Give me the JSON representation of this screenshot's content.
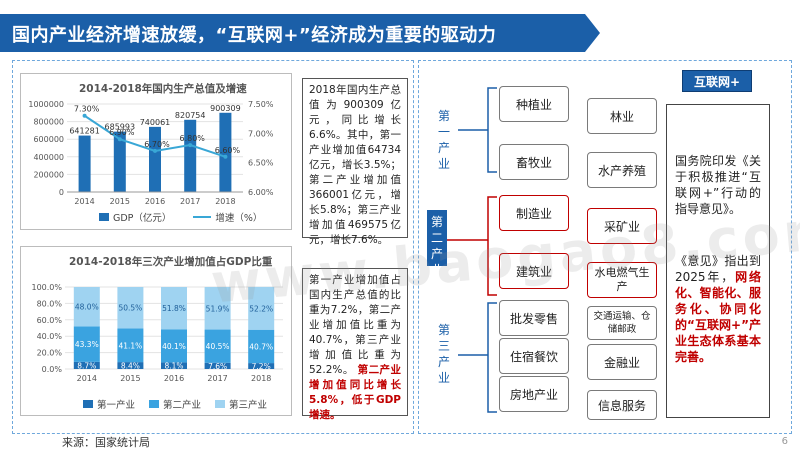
{
  "title": "国内产业经济增速放缓，“互联网+”经济成为重要的驱动力",
  "colors": {
    "brand_blue": "#1b5fa8",
    "accent_red": "#c00000",
    "bar_dark": "#1f6fb5",
    "bar_mid": "#3aa3e0",
    "bar_light": "#9fd3f1"
  },
  "chart1": {
    "title": "2014-2018年国内生产总值及增速",
    "legend_gdp": "GDP（亿元）",
    "legend_growth": "增速（%）",
    "categories": [
      "2014",
      "2015",
      "2016",
      "2017",
      "2018"
    ],
    "gdp_labels": [
      "641281",
      "685993",
      "740061",
      "820754",
      "900309"
    ],
    "growth_labels": [
      "7.30%",
      "6.90%",
      "6.70%",
      "6.80%",
      "6.60%"
    ],
    "y_left_ticks": [
      "1000000",
      "800000",
      "600000",
      "400000",
      "200000",
      "0"
    ],
    "y_right_ticks": [
      "7.50%",
      "7.00%",
      "6.50%",
      "6.00%"
    ]
  },
  "chart2": {
    "title": "2014-2018年三次产业增加值占GDP比重",
    "categories": [
      "2014",
      "2015",
      "2016",
      "2017",
      "2018"
    ],
    "y_ticks": [
      "100.0%",
      "80.0%",
      "60.0%",
      "40.0%",
      "20.0%",
      "0.0%"
    ],
    "legend": [
      "第一产业",
      "第二产业",
      "第三产业"
    ],
    "tertiary_labels": [
      "48.0%",
      "50.5%",
      "51.8%",
      "51.9%",
      "52.2%"
    ],
    "secondary_labels": [
      "43.3%",
      "41.1%",
      "40.1%",
      "40.5%",
      "40.7%"
    ],
    "primary_labels": [
      "8.7%",
      "8.4%",
      "8.1%",
      "7.6%",
      "7.2%"
    ]
  },
  "chart_data": [
    {
      "type": "bar",
      "title": "2014-2018年国内生产总值及增速",
      "categories": [
        "2014",
        "2015",
        "2016",
        "2017",
        "2018"
      ],
      "series": [
        {
          "name": "GDP（亿元）",
          "values": [
            641281,
            685993,
            740061,
            820754,
            900309
          ],
          "axis": "left"
        },
        {
          "name": "增速（%）",
          "values": [
            7.3,
            6.9,
            6.7,
            6.8,
            6.6
          ],
          "axis": "right",
          "render": "line"
        }
      ],
      "ylim": [
        0,
        1000000
      ],
      "y2lim": [
        6.0,
        7.5
      ],
      "legend_position": "bottom"
    },
    {
      "type": "bar",
      "stacked": true,
      "title": "2014-2018年三次产业增加值占GDP比重",
      "categories": [
        "2014",
        "2015",
        "2016",
        "2017",
        "2018"
      ],
      "series": [
        {
          "name": "第一产业",
          "values": [
            8.7,
            8.4,
            8.1,
            7.6,
            7.2
          ]
        },
        {
          "name": "第二产业",
          "values": [
            43.3,
            41.1,
            40.1,
            40.5,
            40.7
          ]
        },
        {
          "name": "第三产业",
          "values": [
            48.0,
            50.5,
            51.8,
            51.9,
            52.2
          ]
        }
      ],
      "ylim": [
        0,
        100
      ],
      "legend_position": "bottom"
    }
  ],
  "text_gdp": "2018年国内生产总值为900309亿元，同比增长6.6%。其中，第一产业增加值64734亿元，增长3.5%；第二产业增加值366001亿元，增长5.8%；第三产业增加值469575亿元，增长7.6%。",
  "text_share": "第一产业增加值占国内生产总值的比重为7.2%，第二产业增加值比重为40.7%，第三产业增加值比重为52.2%。",
  "text_share_red": "第二产业增加值同比增长5.8%，低于GDP增速。",
  "industries": {
    "primary_label": "第一产业",
    "secondary_label": "第二产业",
    "tertiary_label": "第三产业",
    "primary": [
      "种植业",
      "林业",
      "畜牧业",
      "水产养殖"
    ],
    "secondary": [
      "制造业",
      "采矿业",
      "建筑业",
      "水电燃气生产"
    ],
    "tertiary": [
      "批发零售",
      "交通运输、仓储邮政",
      "住宿餐饮",
      "金融业",
      "房地产业",
      "信息服务"
    ]
  },
  "badge": "互联网+",
  "policy_text": "国务院印发《关于积极推进“互联网+”行动的指导意见》。",
  "policy_text2": "《意见》指出到2025年，",
  "policy_red": "网络化、智能化、服务化、协同化的“互联网+”产业生态体系基本完善。",
  "watermark": "www.baogao8.com",
  "footer": "来源：国家统计局",
  "page_number": "6"
}
